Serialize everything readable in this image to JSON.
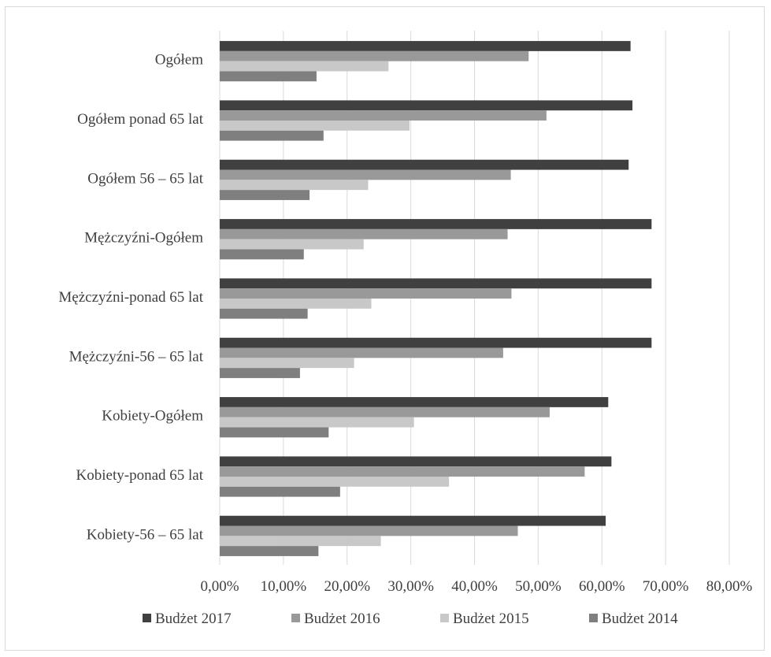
{
  "chart_data": {
    "type": "bar",
    "orientation": "horizontal",
    "categories": [
      "Ogółem",
      "Ogółem ponad 65 lat",
      "Ogółem 56 – 65 lat",
      "Mężczyźni-Ogółem",
      "Mężczyźni-ponad 65 lat",
      "Mężczyźni-56 – 65 lat",
      "Kobiety-Ogółem",
      "Kobiety-ponad 65 lat",
      "Kobiety-56 – 65 lat"
    ],
    "series": [
      {
        "name": "Budżet 2017",
        "color": "#404040",
        "values": [
          64.5,
          64.8,
          64.2,
          67.8,
          67.8,
          67.8,
          61.0,
          61.5,
          60.6
        ]
      },
      {
        "name": "Budżet 2016",
        "color": "#999999",
        "values": [
          48.5,
          51.3,
          45.7,
          45.2,
          45.8,
          44.5,
          51.8,
          57.3,
          46.8
        ]
      },
      {
        "name": "Budżet 2015",
        "color": "#c8c8c8",
        "values": [
          26.5,
          29.8,
          23.3,
          22.6,
          23.8,
          21.1,
          30.5,
          36.0,
          25.3
        ]
      },
      {
        "name": "Budżet 2014",
        "color": "#7f7f7f",
        "values": [
          15.2,
          16.3,
          14.1,
          13.2,
          13.8,
          12.6,
          17.1,
          18.9,
          15.5
        ]
      }
    ],
    "xlim": [
      0,
      80
    ],
    "x_ticks": [
      "0,00%",
      "10,00%",
      "20,00%",
      "30,00%",
      "40,00%",
      "50,00%",
      "60,00%",
      "70,00%",
      "80,00%"
    ],
    "grid": true,
    "legend_position": "bottom",
    "title": "",
    "xlabel": "",
    "ylabel": ""
  }
}
